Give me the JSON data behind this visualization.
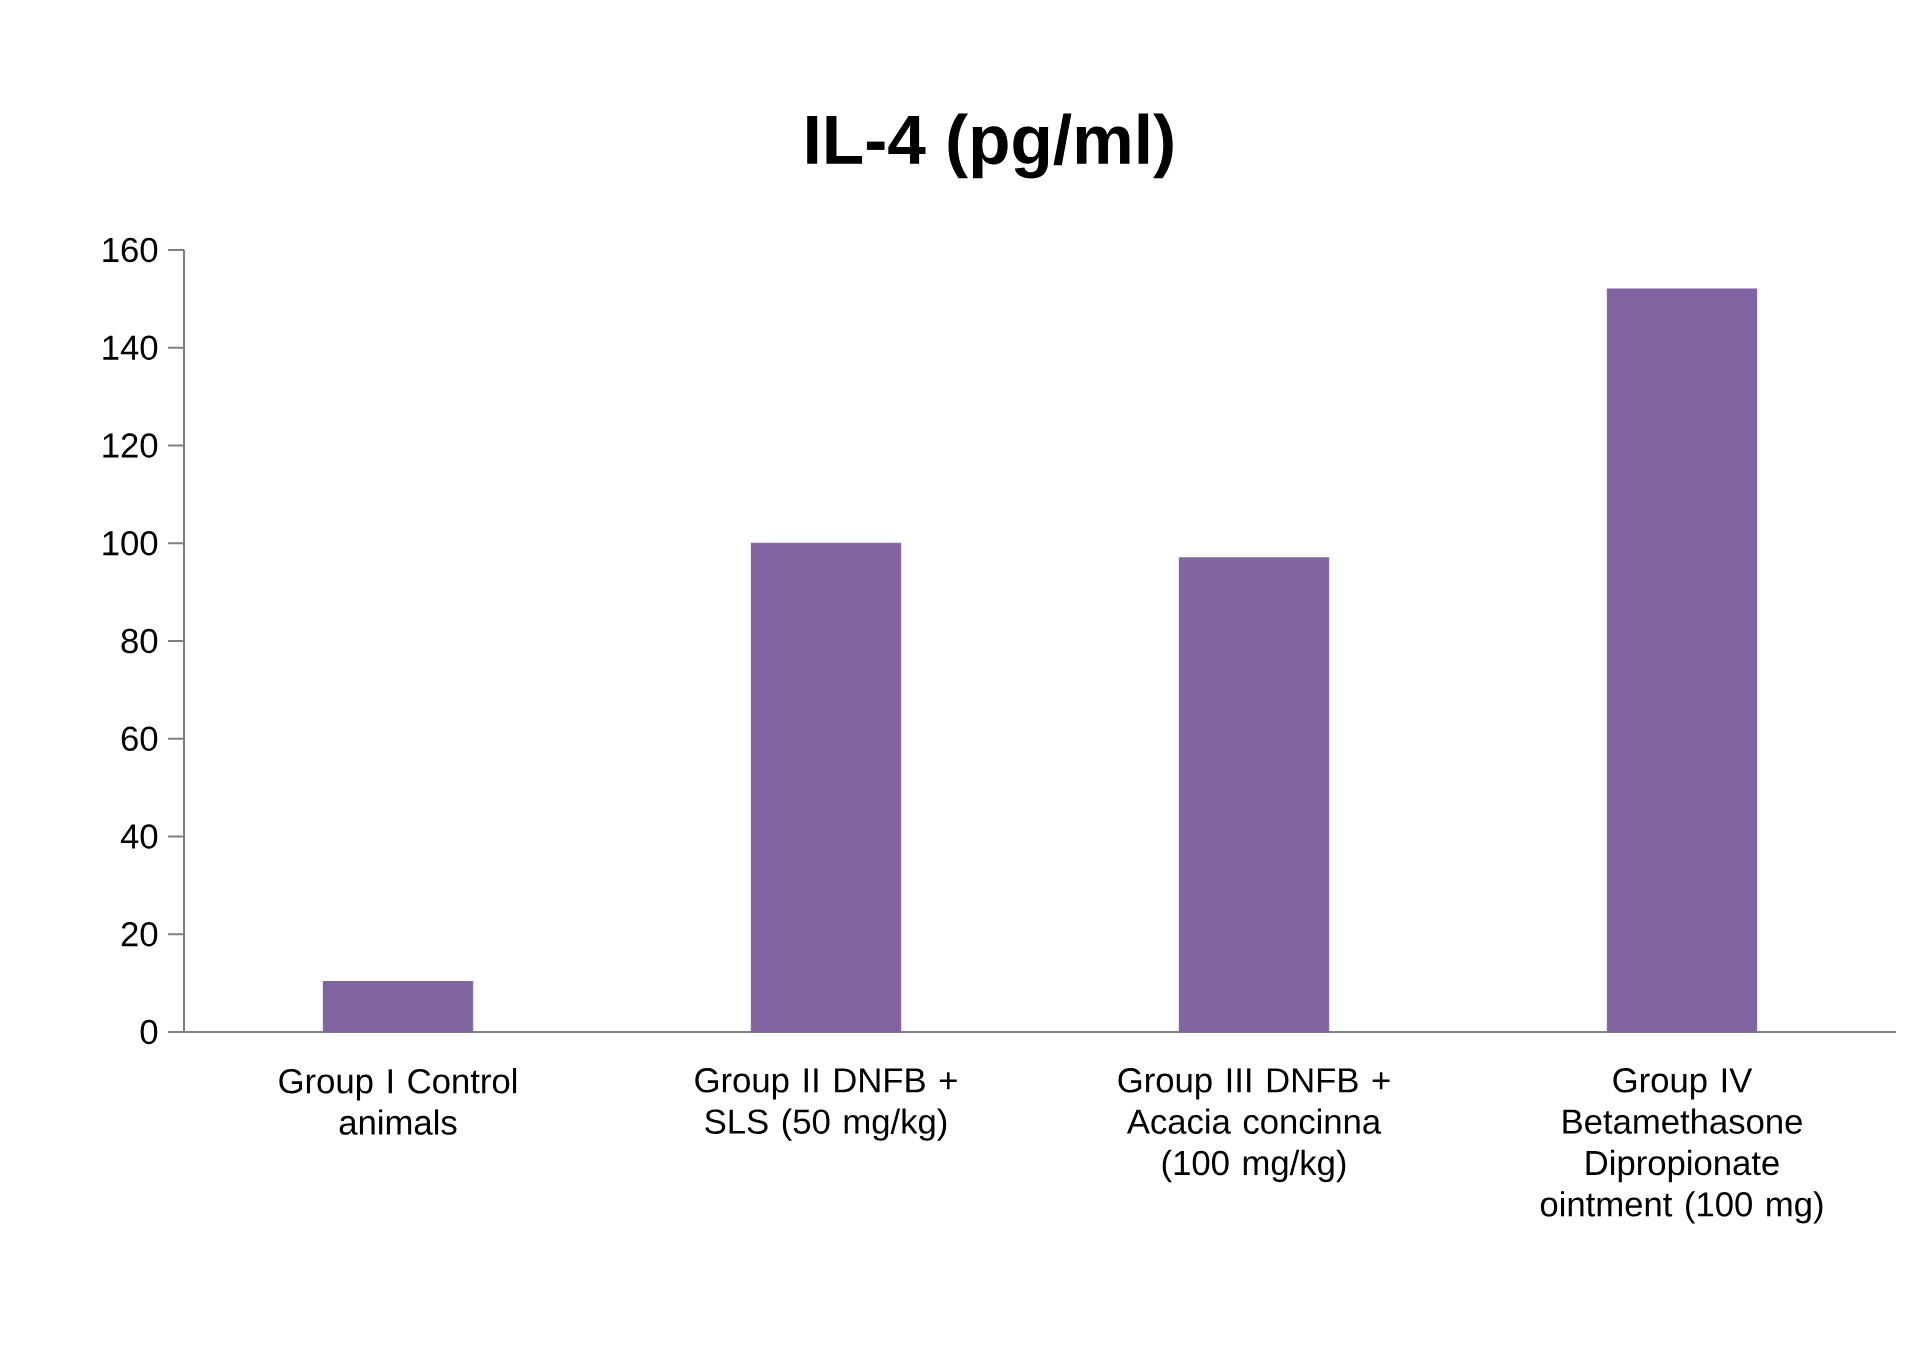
{
  "chart_data": {
    "type": "bar",
    "title": "IL-4 (pg/ml)",
    "categories": [
      "Group I Control animals",
      "Group II DNFB + SLS (50 mg/kg)",
      "Group III DNFB + Acacia concinna (100 mg/kg)",
      "Group IV Betamethasone Dipropionate ointment (100 mg)"
    ],
    "values": [
      10.3,
      100,
      97,
      152
    ],
    "color": "#8064a2",
    "ylim": [
      0,
      160
    ],
    "yticks": [
      0,
      20,
      40,
      60,
      80,
      100,
      120,
      140,
      160
    ],
    "grid": false
  }
}
